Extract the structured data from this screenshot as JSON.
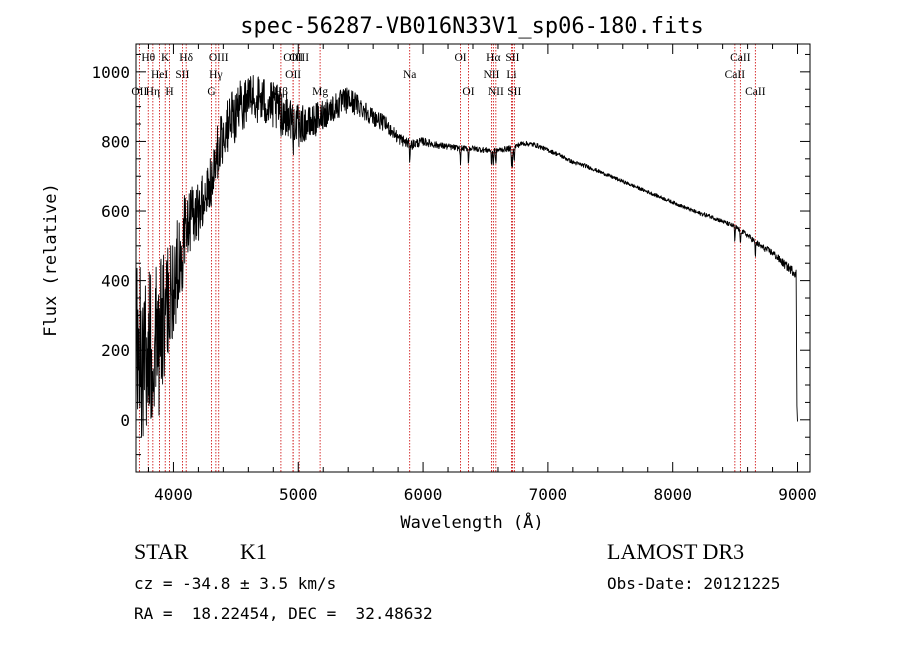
{
  "chart_data": {
    "type": "line",
    "title": "spec-56287-VB016N33V1_sp06-180.fits",
    "xlabel": "Wavelength (Å)",
    "ylabel": "Flux (relative)",
    "xlim": [
      3700,
      9100
    ],
    "ylim": [
      -150,
      1080
    ],
    "xticks": [
      4000,
      5000,
      6000,
      7000,
      8000,
      9000
    ],
    "yticks": [
      0,
      200,
      400,
      600,
      800,
      1000
    ],
    "grid": false,
    "spectrum_anchors": {
      "wavelength": [
        3700,
        3800,
        3900,
        4000,
        4100,
        4200,
        4300,
        4400,
        4500,
        4600,
        4700,
        4800,
        4900,
        5000,
        5100,
        5200,
        5300,
        5400,
        5500,
        5600,
        5700,
        5800,
        5900,
        6000,
        6100,
        6200,
        6300,
        6400,
        6500,
        6600,
        6700,
        6800,
        6900,
        7000,
        7100,
        7200,
        7300,
        7400,
        7500,
        7600,
        7700,
        7800,
        7900,
        8000,
        8100,
        8200,
        8300,
        8400,
        8500,
        8600,
        8700,
        8800,
        8900,
        8990
      ],
      "flux": [
        180,
        200,
        250,
        380,
        560,
        600,
        700,
        820,
        880,
        930,
        920,
        900,
        880,
        850,
        850,
        880,
        900,
        920,
        900,
        870,
        850,
        810,
        790,
        800,
        790,
        785,
        780,
        780,
        775,
        775,
        780,
        795,
        790,
        775,
        760,
        740,
        730,
        715,
        700,
        685,
        670,
        655,
        640,
        625,
        610,
        595,
        585,
        570,
        555,
        530,
        500,
        480,
        445,
        420
      ],
      "noise": [
        260,
        250,
        220,
        160,
        100,
        90,
        80,
        85,
        80,
        75,
        75,
        70,
        65,
        55,
        50,
        45,
        42,
        38,
        32,
        26,
        22,
        18,
        15,
        12,
        10,
        9,
        8,
        8,
        8,
        8,
        8,
        7,
        7,
        6,
        6,
        6,
        6,
        5,
        5,
        5,
        5,
        5,
        5,
        5,
        5,
        6,
        6,
        6,
        7,
        8,
        9,
        10,
        12,
        14
      ]
    },
    "spectral_lines": [
      {
        "label": "OII",
        "wavelength": 3727,
        "row": 3
      },
      {
        "label": "Hθ",
        "wavelength": 3798,
        "row": 1
      },
      {
        "label": "Hη",
        "wavelength": 3835,
        "row": 3
      },
      {
        "label": "HeI",
        "wavelength": 3889,
        "row": 2
      },
      {
        "label": "K",
        "wavelength": 3934,
        "row": 1
      },
      {
        "label": "H",
        "wavelength": 3969,
        "row": 3
      },
      {
        "label": "SII",
        "wavelength": 4072,
        "row": 2
      },
      {
        "label": "Hδ",
        "wavelength": 4102,
        "row": 1
      },
      {
        "label": "G",
        "wavelength": 4305,
        "row": 3
      },
      {
        "label": "Hγ",
        "wavelength": 4340,
        "row": 2
      },
      {
        "label": "OIII",
        "wavelength": 4363,
        "row": 1
      },
      {
        "label": "Hβ",
        "wavelength": 4861,
        "row": 3
      },
      {
        "label": "OIII",
        "wavelength": 4959,
        "row": 1
      },
      {
        "label": "OII",
        "wavelength": 4959,
        "row": 2
      },
      {
        "label": "OIII",
        "wavelength": 5007,
        "row": 1
      },
      {
        "label": "Mg",
        "wavelength": 5175,
        "row": 3
      },
      {
        "label": "Na",
        "wavelength": 5893,
        "row": 2
      },
      {
        "label": "OI",
        "wavelength": 6300,
        "row": 1
      },
      {
        "label": "OI",
        "wavelength": 6364,
        "row": 3
      },
      {
        "label": "NII",
        "wavelength": 6548,
        "row": 2
      },
      {
        "label": "Hα",
        "wavelength": 6563,
        "row": 1
      },
      {
        "label": "NII",
        "wavelength": 6583,
        "row": 3
      },
      {
        "label": "SII",
        "wavelength": 6716,
        "row": 1
      },
      {
        "label": "Li",
        "wavelength": 6708,
        "row": 2
      },
      {
        "label": "SII",
        "wavelength": 6731,
        "row": 3
      },
      {
        "label": "CaII",
        "wavelength": 8498,
        "row": 2
      },
      {
        "label": "CaII",
        "wavelength": 8542,
        "row": 1
      },
      {
        "label": "CaII",
        "wavelength": 8662,
        "row": 3
      }
    ]
  },
  "info": {
    "object_class": "STAR",
    "subclass": "K1",
    "survey": "LAMOST DR3",
    "cz_text": "cz = -34.8 ± 3.5 km/s",
    "obs_date_text": "Obs-Date: 20121225",
    "coords_text": "RA =  18.22454, DEC =  32.48632"
  },
  "colors": {
    "spectrum": "#000000",
    "line_markers": "#cc0000",
    "axes": "#000000",
    "background": "#ffffff"
  }
}
